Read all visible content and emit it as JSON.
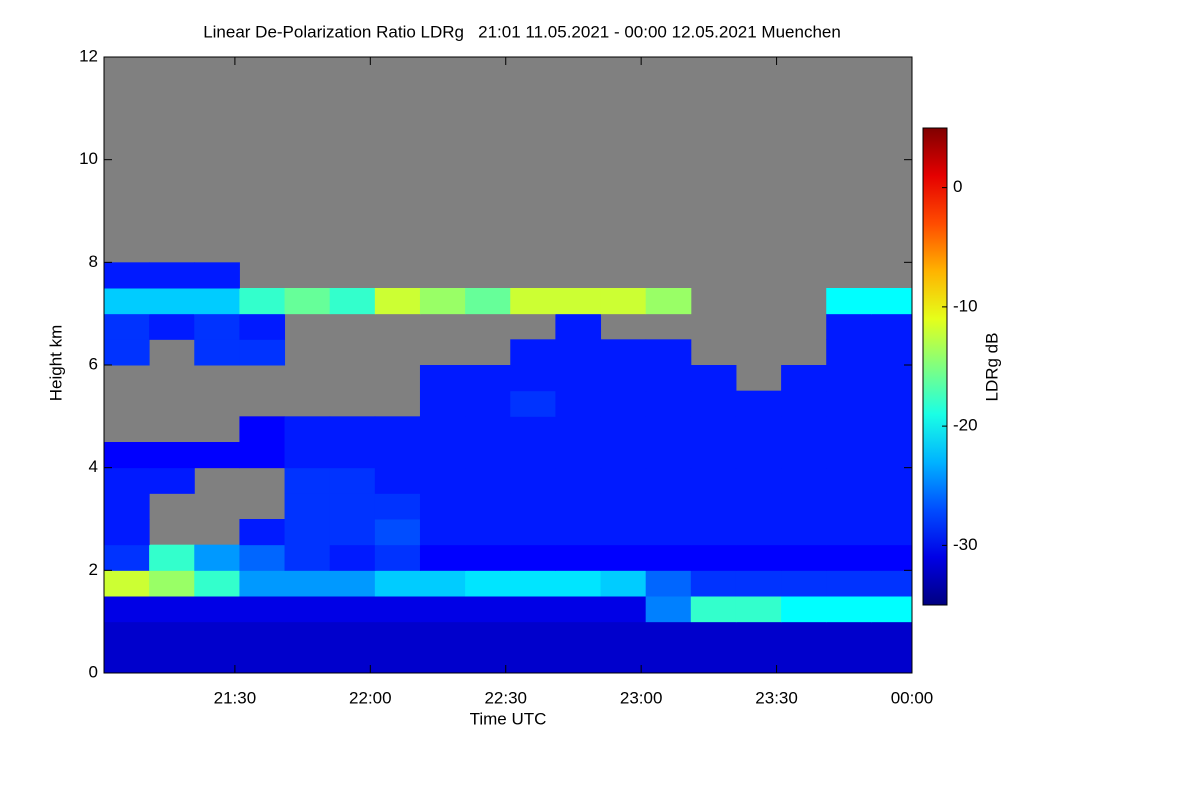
{
  "chart_data": {
    "type": "heatmap",
    "title": "Linear De-Polarization Ratio LDRg   21:01 11.05.2021 - 00:00 12.05.2021 Muenchen",
    "x_label": "Time UTC",
    "y_label": "Height km",
    "colorbar_label": "LDRg dB",
    "xlim": [
      21.0167,
      24
    ],
    "ylim": [
      0,
      12
    ],
    "xticks": [
      {
        "value": 21.5,
        "label": "21:30"
      },
      {
        "value": 22,
        "label": "22:00"
      },
      {
        "value": 22.5,
        "label": "22:30"
      },
      {
        "value": 23,
        "label": "23:00"
      },
      {
        "value": 23.5,
        "label": "23:30"
      },
      {
        "value": 24,
        "label": "00:00"
      }
    ],
    "yticks": [
      0,
      2,
      4,
      6,
      8,
      10,
      12
    ],
    "zlim": [
      -35,
      5
    ],
    "zticks": [
      0,
      -10,
      -20,
      -30
    ],
    "colormap": "jet",
    "missing_color": "#808080",
    "x_bins": [
      21.0167,
      21.1833,
      21.35,
      21.5167,
      21.6833,
      21.85,
      22.0167,
      22.1833,
      22.35,
      22.5167,
      22.6833,
      22.85,
      23.0167,
      23.1833,
      23.35,
      23.5167,
      23.6833,
      23.85,
      24
    ],
    "y_bins": [
      0,
      0.5,
      1,
      1.5,
      2,
      2.5,
      3,
      3.5,
      4,
      4.5,
      5,
      5.5,
      6,
      6.5,
      7,
      7.5,
      8
    ],
    "z": [
      [
        -32,
        -32,
        -32,
        -32,
        -32,
        -32,
        -32,
        -32,
        -32,
        -32,
        -32,
        -32,
        -32,
        -32,
        -32,
        -32,
        -32,
        -32
      ],
      [
        -32,
        -32,
        -32,
        -32,
        -32,
        -32,
        -32,
        -32,
        -32,
        -32,
        -32,
        -32,
        -32,
        -32,
        -32,
        -32,
        -32,
        -32
      ],
      [
        -31,
        -31,
        -31,
        -31,
        -31,
        -31,
        -31,
        -31,
        -31,
        -31,
        -31,
        -31,
        -25,
        -18,
        -18,
        -20,
        -20,
        -20
      ],
      [
        -12,
        -14,
        -18,
        -24,
        -24,
        -24,
        -22,
        -22,
        -21,
        -21,
        -21,
        -22,
        -26,
        -28,
        -28,
        -28,
        -28,
        -28
      ],
      [
        -28,
        -18,
        -24,
        -26,
        -28,
        -29,
        -28,
        -30,
        -30,
        -30,
        -30,
        -30,
        -30,
        -30,
        -30,
        -30,
        -30,
        -30
      ],
      [
        -29,
        null,
        null,
        -29,
        -28,
        -28,
        -27,
        -29,
        -29,
        -29,
        -29,
        -29,
        -29,
        -29,
        -29,
        -29,
        -29,
        -29
      ],
      [
        -29,
        null,
        null,
        null,
        -28,
        -28,
        -28,
        -29,
        -29,
        -29,
        -29,
        -29,
        -29,
        -29,
        -29,
        -29,
        -29,
        -29
      ],
      [
        -29,
        -29,
        null,
        null,
        -28,
        -28,
        -29,
        -29,
        -29,
        -29,
        -29,
        -29,
        -29,
        -29,
        -29,
        -29,
        -29,
        -29
      ],
      [
        -30,
        -30,
        -30,
        -30,
        -29,
        -29,
        -29,
        -29,
        -29,
        -29,
        -29,
        -29,
        -29,
        -29,
        -29,
        -29,
        -29,
        -29
      ],
      [
        null,
        null,
        null,
        -30,
        -29,
        -29,
        -29,
        -29,
        -29,
        -29,
        -29,
        -29,
        -29,
        -29,
        -29,
        -29,
        -29,
        -29
      ],
      [
        null,
        null,
        null,
        null,
        null,
        null,
        null,
        -29,
        -29,
        -28,
        -29,
        -29,
        -29,
        -29,
        -29,
        -29,
        -29,
        -29
      ],
      [
        null,
        null,
        null,
        null,
        null,
        null,
        null,
        -29,
        -29,
        -29,
        -29,
        -29,
        -29,
        -29,
        null,
        -29,
        -29,
        -29
      ],
      [
        -28,
        null,
        -28,
        -28,
        null,
        null,
        null,
        null,
        null,
        -29,
        -29,
        -29,
        -29,
        null,
        null,
        null,
        -29,
        -29
      ],
      [
        -28,
        -29,
        -28,
        -29,
        null,
        null,
        null,
        null,
        null,
        null,
        -29,
        null,
        null,
        null,
        null,
        null,
        -29,
        -29
      ],
      [
        -22,
        -22,
        -22,
        -18,
        -16,
        -18,
        -12,
        -14,
        -16,
        -12,
        -12,
        -12,
        -14,
        null,
        null,
        null,
        -20,
        -20
      ],
      [
        -29,
        -29,
        -29,
        null,
        null,
        null,
        null,
        null,
        null,
        null,
        null,
        null,
        null,
        null,
        null,
        null,
        null,
        null
      ]
    ]
  }
}
